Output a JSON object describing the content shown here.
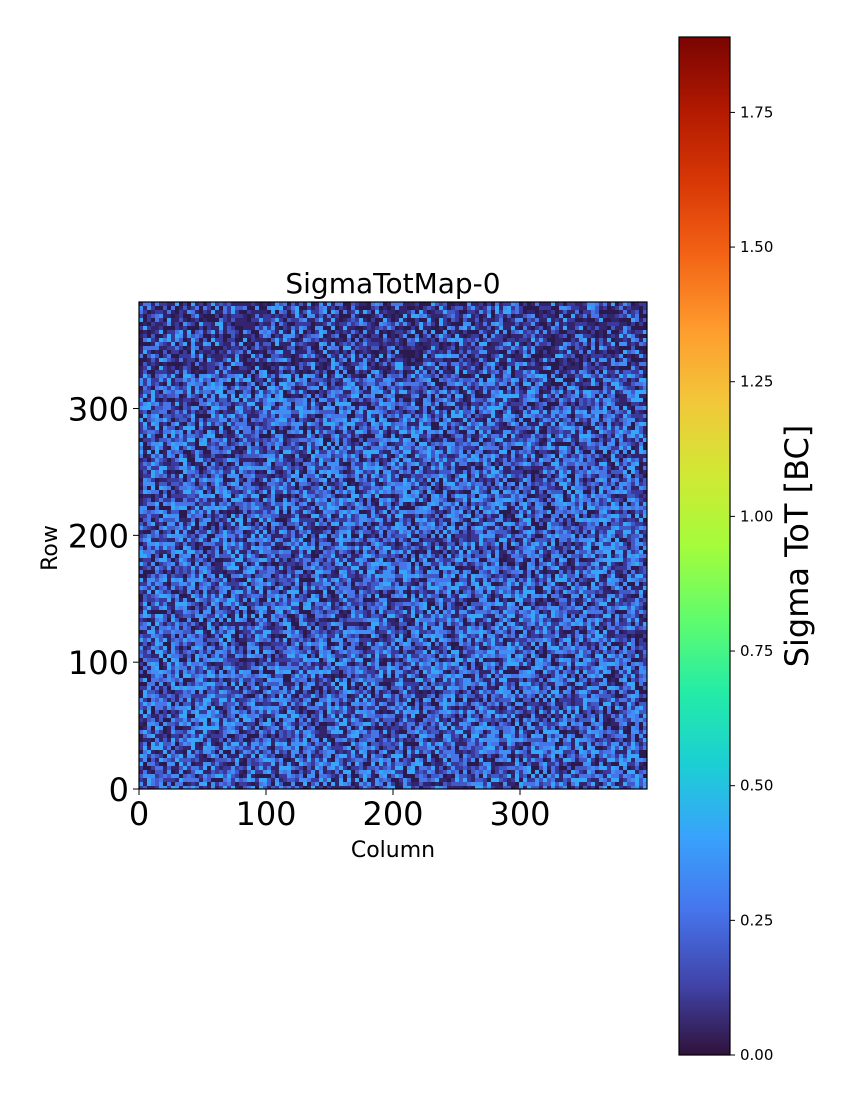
{
  "chart_data": {
    "type": "heatmap",
    "title": "SigmaTotMap-0",
    "xlabel": "Column",
    "ylabel": "Row",
    "xlim": [
      0,
      400
    ],
    "ylim": [
      0,
      384
    ],
    "x_ticks": [
      0,
      100,
      200,
      300
    ],
    "y_ticks": [
      0,
      100,
      200,
      300
    ],
    "x_tick_labels": [
      "0",
      "100",
      "200",
      "300"
    ],
    "y_tick_labels": [
      "0",
      "100",
      "200",
      "300"
    ],
    "colormap": "turbo",
    "colorbar": {
      "label": "Sigma ToT [BC]",
      "range": [
        0,
        1.89
      ],
      "ticks": [
        0.0,
        0.25,
        0.5,
        0.75,
        1.0,
        1.25,
        1.5,
        1.75
      ],
      "tick_labels": [
        "0.00",
        "0.25",
        "0.50",
        "0.75",
        "1.00",
        "1.25",
        "1.50",
        "1.75"
      ]
    },
    "values_summary": "Noisy per-pixel map; values mostly between 0.0 and 0.45 BC, slightly darker (lower) band near the top rows."
  }
}
